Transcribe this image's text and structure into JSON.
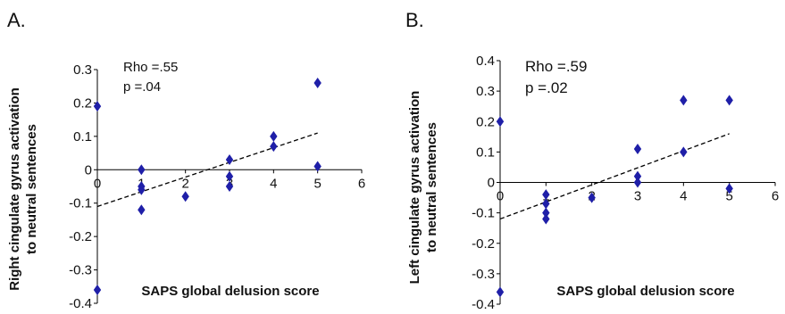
{
  "colors": {
    "marker": "#1f1fa8",
    "axis": "#000000",
    "trend": "#000000"
  },
  "chart_data": [
    {
      "type": "scatter",
      "panel_label": "A.",
      "ylabel_lines": [
        "Right cingulate gyrus activation",
        "to neutral sentences"
      ],
      "xlabel": "SAPS global delusion score",
      "annotation_lines": [
        "Rho =.55",
        "p =.04"
      ],
      "xlim": [
        0,
        6
      ],
      "ylim": [
        -0.4,
        0.3
      ],
      "xticks": [
        0,
        1,
        2,
        3,
        4,
        5,
        6
      ],
      "yticks": [
        -0.4,
        -0.3,
        -0.2,
        -0.1,
        0,
        0.1,
        0.2,
        0.3
      ],
      "xtick_labels": [
        "0",
        "1",
        "2",
        "3",
        "4",
        "5",
        "6"
      ],
      "ytick_labels": [
        "-0.4",
        "-0.3",
        "-0.2",
        "-0.1",
        "0",
        "0.1",
        "0.2",
        "0.3"
      ],
      "grid": false,
      "points": [
        {
          "x": 0,
          "y": 0.19
        },
        {
          "x": 0,
          "y": -0.36
        },
        {
          "x": 1,
          "y": 0.0
        },
        {
          "x": 1,
          "y": -0.05
        },
        {
          "x": 1,
          "y": -0.06
        },
        {
          "x": 1,
          "y": -0.12
        },
        {
          "x": 2,
          "y": -0.08
        },
        {
          "x": 3,
          "y": 0.03
        },
        {
          "x": 3,
          "y": -0.02
        },
        {
          "x": 3,
          "y": -0.05
        },
        {
          "x": 4,
          "y": 0.1
        },
        {
          "x": 4,
          "y": 0.07
        },
        {
          "x": 5,
          "y": 0.26
        },
        {
          "x": 5,
          "y": 0.01
        }
      ],
      "trendline": {
        "x": [
          0,
          5
        ],
        "y": [
          -0.11,
          0.11
        ]
      }
    },
    {
      "type": "scatter",
      "panel_label": "B.",
      "ylabel_lines": [
        "Left cingulate gyrus activation",
        "to neutral sentences"
      ],
      "xlabel": "SAPS global delusion score",
      "annotation_lines": [
        "Rho =.59",
        "p =.02"
      ],
      "xlim": [
        0,
        6
      ],
      "ylim": [
        -0.4,
        0.4
      ],
      "xticks": [
        0,
        1,
        2,
        3,
        4,
        5,
        6
      ],
      "yticks": [
        -0.4,
        -0.3,
        -0.2,
        -0.1,
        0,
        0.1,
        0.2,
        0.3,
        0.4
      ],
      "xtick_labels": [
        "0",
        "1",
        "2",
        "3",
        "4",
        "5",
        "6"
      ],
      "ytick_labels": [
        "-0.4",
        "-0.3",
        "-0.2",
        "-0.1",
        "0",
        "0.1",
        "0.2",
        "0.3",
        "0.4"
      ],
      "grid": false,
      "points": [
        {
          "x": 0,
          "y": 0.2
        },
        {
          "x": 0,
          "y": -0.36
        },
        {
          "x": 1,
          "y": -0.04
        },
        {
          "x": 1,
          "y": -0.07
        },
        {
          "x": 1,
          "y": -0.1
        },
        {
          "x": 1,
          "y": -0.12
        },
        {
          "x": 2,
          "y": -0.05
        },
        {
          "x": 3,
          "y": 0.11
        },
        {
          "x": 3,
          "y": 0.02
        },
        {
          "x": 3,
          "y": 0.0
        },
        {
          "x": 4,
          "y": 0.27
        },
        {
          "x": 4,
          "y": 0.1
        },
        {
          "x": 5,
          "y": 0.27
        },
        {
          "x": 5,
          "y": -0.02
        }
      ],
      "trendline": {
        "x": [
          0,
          5
        ],
        "y": [
          -0.12,
          0.16
        ]
      }
    }
  ]
}
